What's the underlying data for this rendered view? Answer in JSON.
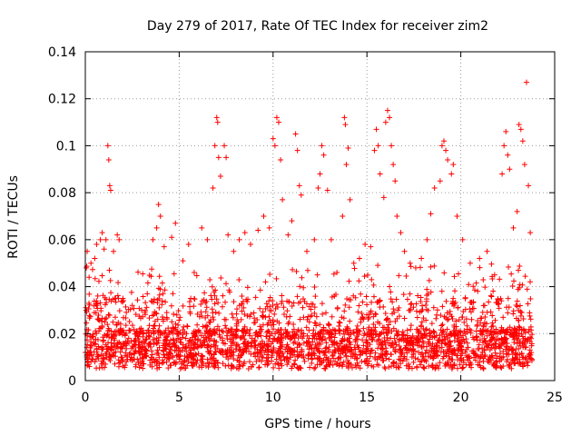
{
  "chart_data": {
    "type": "scatter",
    "title": "Day 279 of 2017, Rate Of TEC Index for receiver zim2",
    "xlabel": "GPS time / hours",
    "ylabel": "ROTI / TECUs",
    "xlim": [
      0,
      25
    ],
    "ylim": [
      0,
      0.14
    ],
    "xticks": [
      0,
      5,
      10,
      15,
      20,
      25
    ],
    "xtick_labels": [
      "0",
      "5",
      "10",
      "15",
      "20",
      "25"
    ],
    "yticks": [
      0,
      0.02,
      0.04,
      0.06,
      0.08,
      0.1,
      0.12,
      0.14
    ],
    "ytick_labels": [
      "0",
      "0.02",
      "0.04",
      "0.06",
      "0.08",
      "0.1",
      "0.12",
      "0.14"
    ],
    "grid": true,
    "marker": "+",
    "color": "#ff0000",
    "data_range_x": [
      0,
      23.8
    ],
    "series": [
      {
        "name": "ROTI",
        "points": [
          [
            0.05,
            0.048
          ],
          [
            0.1,
            0.055
          ],
          [
            0.2,
            0.044
          ],
          [
            0.3,
            0.05
          ],
          [
            0.5,
            0.052
          ],
          [
            0.6,
            0.058
          ],
          [
            0.8,
            0.06
          ],
          [
            0.9,
            0.063
          ],
          [
            1.0,
            0.056
          ],
          [
            1.1,
            0.06
          ],
          [
            1.2,
            0.1
          ],
          [
            1.25,
            0.094
          ],
          [
            1.3,
            0.083
          ],
          [
            1.35,
            0.081
          ],
          [
            1.5,
            0.055
          ],
          [
            1.7,
            0.062
          ],
          [
            1.8,
            0.06
          ],
          [
            2.0,
            0.035
          ],
          [
            2.5,
            0.032
          ],
          [
            3.0,
            0.03
          ],
          [
            3.3,
            0.037
          ],
          [
            3.6,
            0.06
          ],
          [
            3.8,
            0.065
          ],
          [
            3.9,
            0.075
          ],
          [
            4.0,
            0.07
          ],
          [
            4.2,
            0.057
          ],
          [
            4.6,
            0.061
          ],
          [
            4.8,
            0.067
          ],
          [
            5.2,
            0.051
          ],
          [
            5.5,
            0.058
          ],
          [
            5.8,
            0.046
          ],
          [
            6.2,
            0.065
          ],
          [
            6.5,
            0.06
          ],
          [
            6.8,
            0.082
          ],
          [
            6.9,
            0.1
          ],
          [
            7.0,
            0.112
          ],
          [
            7.05,
            0.11
          ],
          [
            7.1,
            0.095
          ],
          [
            7.2,
            0.087
          ],
          [
            7.4,
            0.1
          ],
          [
            7.5,
            0.095
          ],
          [
            7.6,
            0.062
          ],
          [
            7.9,
            0.055
          ],
          [
            8.2,
            0.06
          ],
          [
            8.5,
            0.063
          ],
          [
            8.8,
            0.058
          ],
          [
            9.2,
            0.064
          ],
          [
            9.5,
            0.07
          ],
          [
            9.8,
            0.065
          ],
          [
            10.0,
            0.103
          ],
          [
            10.1,
            0.1
          ],
          [
            10.2,
            0.112
          ],
          [
            10.3,
            0.11
          ],
          [
            10.4,
            0.094
          ],
          [
            10.5,
            0.077
          ],
          [
            10.8,
            0.062
          ],
          [
            11.0,
            0.068
          ],
          [
            11.2,
            0.105
          ],
          [
            11.3,
            0.098
          ],
          [
            11.4,
            0.083
          ],
          [
            11.5,
            0.079
          ],
          [
            11.8,
            0.055
          ],
          [
            12.2,
            0.06
          ],
          [
            12.4,
            0.082
          ],
          [
            12.5,
            0.088
          ],
          [
            12.6,
            0.1
          ],
          [
            12.7,
            0.096
          ],
          [
            12.9,
            0.081
          ],
          [
            13.1,
            0.06
          ],
          [
            13.4,
            0.046
          ],
          [
            13.7,
            0.07
          ],
          [
            13.8,
            0.112
          ],
          [
            13.85,
            0.109
          ],
          [
            13.9,
            0.092
          ],
          [
            14.0,
            0.099
          ],
          [
            14.1,
            0.077
          ],
          [
            14.3,
            0.05
          ],
          [
            14.6,
            0.052
          ],
          [
            14.9,
            0.058
          ],
          [
            15.2,
            0.057
          ],
          [
            15.4,
            0.098
          ],
          [
            15.5,
            0.107
          ],
          [
            15.6,
            0.1
          ],
          [
            15.7,
            0.088
          ],
          [
            15.9,
            0.078
          ],
          [
            16.0,
            0.11
          ],
          [
            16.1,
            0.115
          ],
          [
            16.2,
            0.112
          ],
          [
            16.3,
            0.1
          ],
          [
            16.4,
            0.092
          ],
          [
            16.5,
            0.085
          ],
          [
            16.6,
            0.07
          ],
          [
            16.8,
            0.063
          ],
          [
            17.0,
            0.055
          ],
          [
            17.3,
            0.05
          ],
          [
            17.6,
            0.048
          ],
          [
            17.9,
            0.052
          ],
          [
            18.2,
            0.06
          ],
          [
            18.4,
            0.071
          ],
          [
            18.6,
            0.082
          ],
          [
            18.9,
            0.085
          ],
          [
            19.0,
            0.1
          ],
          [
            19.1,
            0.102
          ],
          [
            19.2,
            0.098
          ],
          [
            19.3,
            0.094
          ],
          [
            19.5,
            0.088
          ],
          [
            19.6,
            0.092
          ],
          [
            19.8,
            0.07
          ],
          [
            20.1,
            0.06
          ],
          [
            20.5,
            0.05
          ],
          [
            21.0,
            0.052
          ],
          [
            21.4,
            0.055
          ],
          [
            21.8,
            0.045
          ],
          [
            22.2,
            0.088
          ],
          [
            22.3,
            0.1
          ],
          [
            22.4,
            0.106
          ],
          [
            22.5,
            0.096
          ],
          [
            22.6,
            0.09
          ],
          [
            22.8,
            0.065
          ],
          [
            23.0,
            0.072
          ],
          [
            23.1,
            0.109
          ],
          [
            23.2,
            0.107
          ],
          [
            23.3,
            0.102
          ],
          [
            23.4,
            0.092
          ],
          [
            23.5,
            0.127
          ],
          [
            23.6,
            0.083
          ],
          [
            23.7,
            0.063
          ]
        ]
      }
    ]
  }
}
